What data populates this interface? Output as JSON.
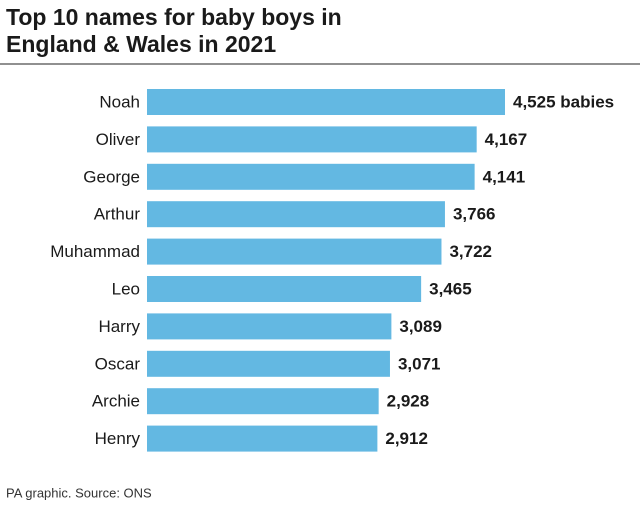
{
  "chart_data": {
    "type": "bar",
    "orientation": "horizontal",
    "title": [
      "Top 10 names for baby boys in",
      "England & Wales in 2021"
    ],
    "categories": [
      "Noah",
      "Oliver",
      "George",
      "Arthur",
      "Muhammad",
      "Leo",
      "Harry",
      "Oscar",
      "Archie",
      "Henry"
    ],
    "values": [
      4525,
      4167,
      4141,
      3766,
      3722,
      3465,
      3089,
      3071,
      2928,
      2912
    ],
    "value_labels": [
      "4,525 babies",
      "4,167",
      "4,141",
      "3,766",
      "3,722",
      "3,465",
      "3,089",
      "3,071",
      "2,928",
      "2,912"
    ],
    "color": "#63b8e2",
    "source": "PA graphic. Source: ONS"
  }
}
